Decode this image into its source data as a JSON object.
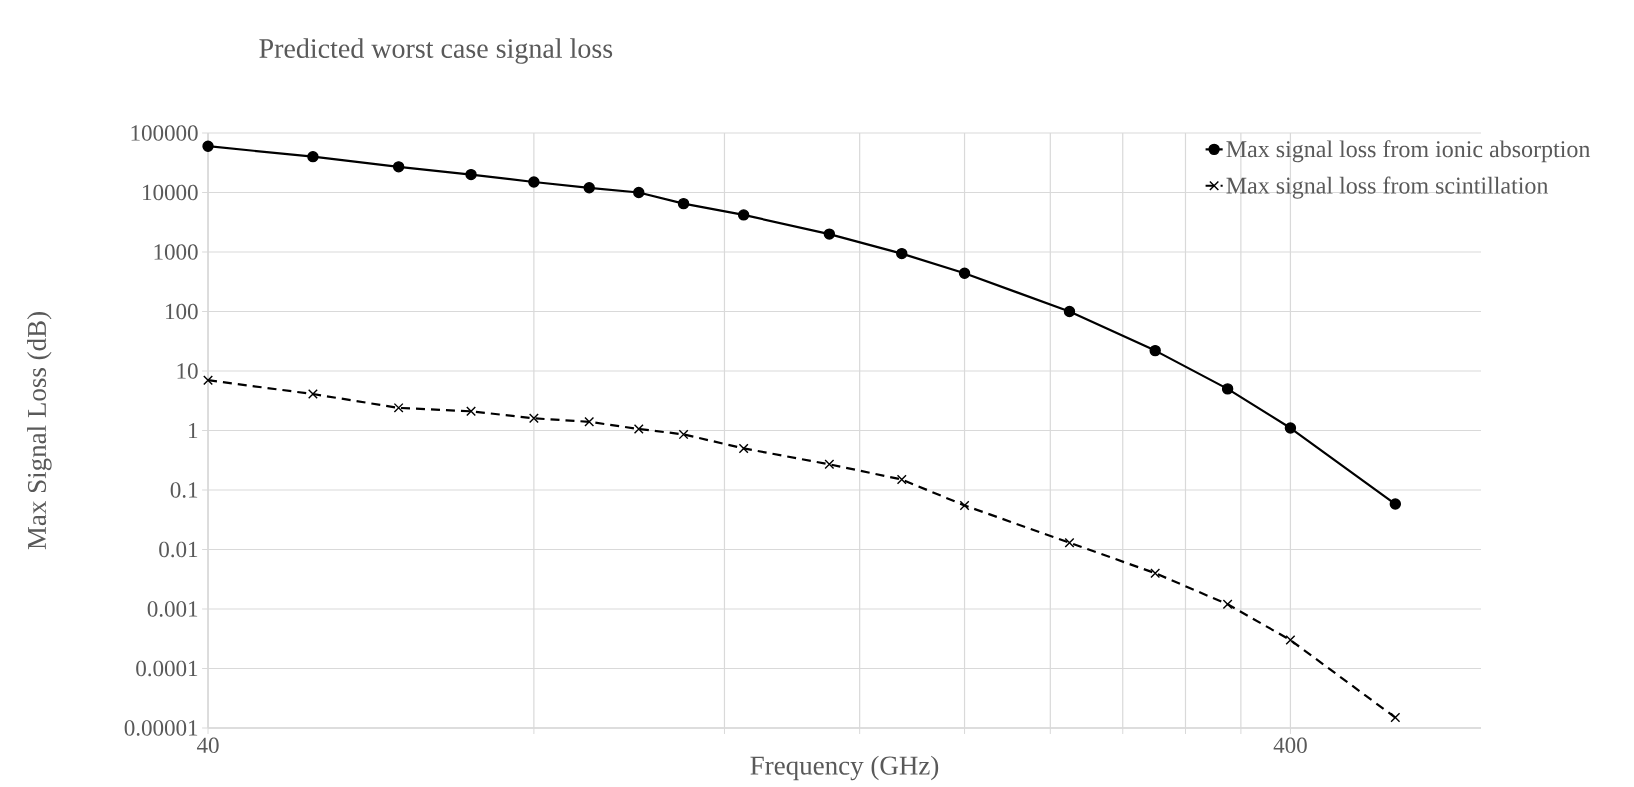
{
  "chart_data": {
    "type": "line",
    "title": "Predicted worst case signal loss",
    "xlabel": "Frequency (GHz)",
    "ylabel": "Max Signal Loss (dB)",
    "x": [
      40,
      50,
      60,
      70,
      80,
      90,
      100,
      110,
      125,
      150,
      175,
      200,
      250,
      300,
      350,
      400,
      500
    ],
    "series": [
      {
        "name": "Max signal loss from ionic absorption",
        "color": "#000000",
        "marker": "circle",
        "line_style": "solid",
        "values": [
          60000,
          40000,
          27000,
          20000,
          15000,
          12000,
          10000,
          6500,
          4200,
          2000,
          940,
          440,
          100,
          22,
          5,
          1.1,
          0.058
        ]
      },
      {
        "name": "Max signal loss from scintillation",
        "color": "#000000",
        "marker": "cross",
        "line_style": "dashed",
        "values": [
          7,
          4.1,
          2.4,
          2.1,
          1.6,
          1.4,
          1.06,
          0.86,
          0.5,
          0.27,
          0.15,
          0.055,
          0.013,
          0.004,
          0.0012,
          0.0003,
          1.5e-05
        ]
      }
    ],
    "log": "xy",
    "xlim": [
      40,
      600
    ],
    "ylim": [
      1e-05,
      100000
    ],
    "xticks": [
      40,
      {
        "value": 80,
        "label": null
      },
      {
        "value": 120,
        "label": null
      },
      {
        "value": 160,
        "label": null
      },
      {
        "value": 200,
        "label": null
      },
      {
        "value": 240,
        "label": null
      },
      {
        "value": 280,
        "label": null
      },
      {
        "value": 320,
        "label": null
      },
      {
        "value": 360,
        "label": null
      },
      400
    ],
    "yticks": [
      {
        "value": 1e-05,
        "label": "0.00001"
      },
      0.0001,
      0.001,
      0.01,
      0.1,
      1,
      10,
      100,
      1000,
      10000,
      100000
    ],
    "grid": true,
    "legend": "top right"
  }
}
